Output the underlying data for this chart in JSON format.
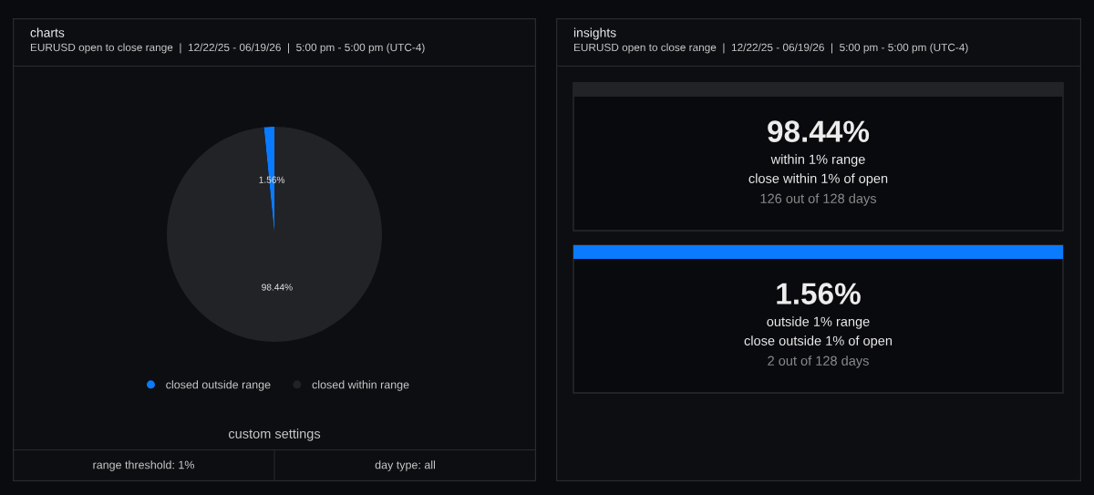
{
  "chart_data": [
    {
      "type": "pie",
      "title": "charts",
      "subtitle": "EURUSD open to close range  |  12/22/25 - 06/19/26  |  5:00 pm - 5:00 pm (UTC-4)",
      "categories": [
        "closed outside range",
        "closed within range"
      ],
      "values": [
        1.56,
        98.44
      ],
      "colors": [
        "#0a7bff",
        "#222327"
      ],
      "value_labels": [
        "1.56%",
        "98.44%"
      ],
      "legend": "bottom",
      "annotations": [
        "custom settings",
        "range threshold: 1%",
        "day type: all"
      ]
    },
    {
      "type": "other",
      "title": "insights",
      "subtitle": "EURUSD open to close range  |  12/22/25 - 06/19/26  |  5:00 pm - 5:00 pm (UTC-4)",
      "colors": [
        "#222327",
        "#0a7bff"
      ],
      "annotations": [
        "98.44%",
        "within 1% range",
        "close within 1% of open",
        "126 out of 128 days",
        "1.56%",
        "outside 1% range",
        "close outside 1% of open",
        "2 out of 128 days"
      ]
    }
  ]
}
